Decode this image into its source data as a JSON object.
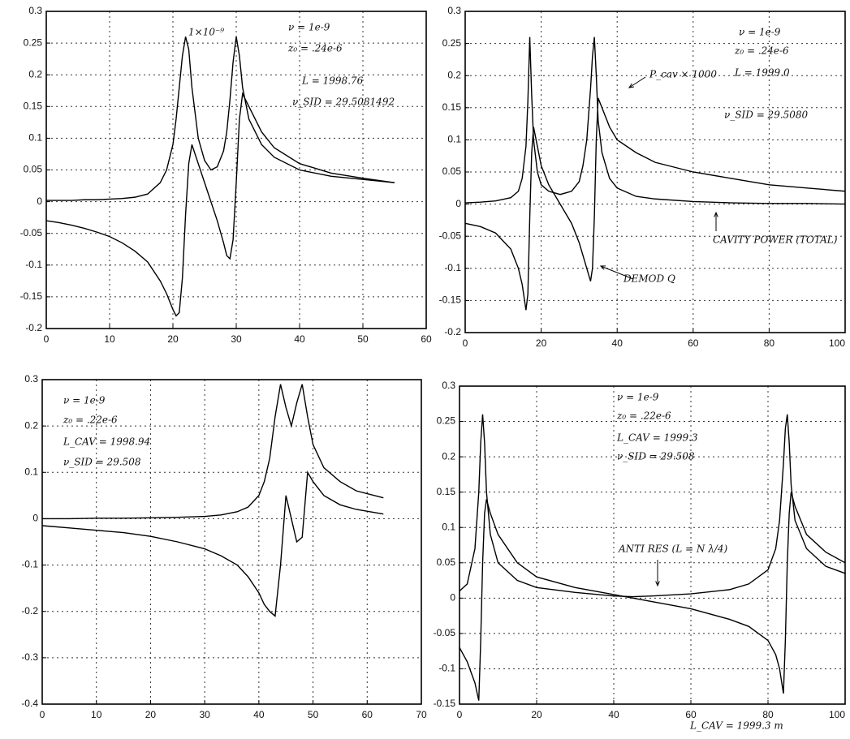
{
  "chart_data": [
    {
      "type": "line",
      "x": [
        0,
        2,
        4,
        6,
        8,
        10,
        12,
        14,
        16,
        18,
        19,
        20,
        20.5,
        21,
        21.5,
        22,
        22.5,
        23,
        24,
        25,
        26,
        27,
        28,
        28.5,
        29,
        29.5,
        30,
        30.5,
        31,
        32,
        34,
        36,
        40,
        45,
        50,
        55
      ],
      "series": [
        {
          "color": "#000000",
          "values": [
            0.002,
            0.002,
            0.002,
            0.003,
            0.003,
            0.004,
            0.005,
            0.007,
            0.012,
            0.03,
            0.05,
            0.09,
            0.13,
            0.18,
            0.23,
            0.26,
            0.24,
            0.18,
            0.1,
            0.065,
            0.05,
            0.055,
            0.08,
            0.11,
            0.16,
            0.22,
            0.26,
            0.23,
            0.18,
            0.13,
            0.09,
            0.07,
            0.05,
            0.04,
            0.035,
            0.03
          ]
        },
        {
          "color": "#000000",
          "values": [
            -0.03,
            -0.033,
            -0.037,
            -0.042,
            -0.048,
            -0.055,
            -0.065,
            -0.078,
            -0.095,
            -0.125,
            -0.145,
            -0.17,
            -0.18,
            -0.175,
            -0.12,
            -0.02,
            0.06,
            0.09,
            0.06,
            0.03,
            0.0,
            -0.03,
            -0.065,
            -0.085,
            -0.09,
            -0.06,
            0.03,
            0.13,
            0.17,
            0.15,
            0.11,
            0.085,
            0.06,
            0.045,
            0.037,
            0.03
          ]
        }
      ],
      "xlim": [
        0,
        60
      ],
      "ylim": [
        -0.2,
        0.3
      ],
      "xticks": [
        0,
        10,
        20,
        30,
        40,
        50,
        60
      ],
      "yticks": [
        -0.2,
        -0.15,
        -0.1,
        -0.05,
        0,
        0.05,
        0.1,
        0.15,
        0.2,
        0.25,
        0.3
      ],
      "grid": true,
      "annotations": [
        "1×10⁻⁹",
        "ν = 1e-9",
        "z₀ = .24e-6",
        "L = 1998.76",
        "ν_SID = 29.5081492"
      ]
    },
    {
      "type": "line",
      "x": [
        0,
        4,
        8,
        12,
        14,
        15,
        16,
        16.5,
        17,
        17.5,
        18,
        19,
        20,
        22,
        25,
        28,
        30,
        31,
        32,
        33,
        33.5,
        34,
        34.5,
        35,
        36,
        38,
        40,
        45,
        50,
        60,
        70,
        80,
        90,
        100
      ],
      "series": [
        {
          "color": "#000000",
          "values": [
            0.002,
            0.003,
            0.005,
            0.01,
            0.02,
            0.04,
            0.09,
            0.16,
            0.26,
            0.17,
            0.1,
            0.05,
            0.03,
            0.02,
            0.015,
            0.02,
            0.035,
            0.06,
            0.1,
            0.18,
            0.23,
            0.26,
            0.2,
            0.13,
            0.08,
            0.04,
            0.025,
            0.012,
            0.008,
            0.004,
            0.002,
            0.001,
            0.001,
            0.0
          ]
        },
        {
          "color": "#000000",
          "values": [
            -0.03,
            -0.035,
            -0.045,
            -0.07,
            -0.1,
            -0.125,
            -0.165,
            -0.14,
            -0.02,
            0.08,
            0.12,
            0.09,
            0.06,
            0.03,
            0.0,
            -0.03,
            -0.06,
            -0.08,
            -0.1,
            -0.12,
            -0.1,
            -0.02,
            0.1,
            0.165,
            0.15,
            0.12,
            0.1,
            0.08,
            0.065,
            0.05,
            0.04,
            0.03,
            0.025,
            0.02
          ]
        }
      ],
      "xlim": [
        0,
        100
      ],
      "ylim": [
        -0.2,
        0.3
      ],
      "xticks": [
        0,
        20,
        40,
        60,
        80,
        100
      ],
      "yticks": [
        -0.2,
        -0.15,
        -0.1,
        -0.05,
        0,
        0.05,
        0.1,
        0.15,
        0.2,
        0.25,
        0.3
      ],
      "grid": true,
      "annotations": [
        "ν = 1e-9",
        "z₀ = .24e-6",
        "L = 1999.0",
        "ν_SID = 29.5080",
        "P_cav × 1000",
        "CAVITY POWER (TOTAL)",
        "DEMOD Q"
      ]
    },
    {
      "type": "line",
      "x": [
        0,
        5,
        10,
        15,
        20,
        25,
        30,
        33,
        36,
        38,
        40,
        41,
        42,
        43,
        44,
        45,
        46,
        47,
        48,
        49,
        50,
        52,
        55,
        58,
        63
      ],
      "series": [
        {
          "color": "#000000",
          "values": [
            0,
            0,
            0.001,
            0.001,
            0.002,
            0.003,
            0.005,
            0.008,
            0.015,
            0.025,
            0.05,
            0.08,
            0.13,
            0.22,
            0.29,
            0.24,
            0.2,
            0.25,
            0.29,
            0.22,
            0.16,
            0.11,
            0.08,
            0.06,
            0.045
          ]
        },
        {
          "color": "#000000",
          "values": [
            -0.015,
            -0.02,
            -0.025,
            -0.03,
            -0.038,
            -0.05,
            -0.065,
            -0.08,
            -0.1,
            -0.125,
            -0.16,
            -0.185,
            -0.2,
            -0.21,
            -0.1,
            0.05,
            0.0,
            -0.05,
            -0.04,
            0.1,
            0.08,
            0.05,
            0.03,
            0.02,
            0.01
          ]
        }
      ],
      "xlim": [
        0,
        70
      ],
      "ylim": [
        -0.4,
        0.3
      ],
      "xticks": [
        0,
        10,
        20,
        30,
        40,
        50,
        60,
        70
      ],
      "yticks": [
        -0.4,
        -0.3,
        -0.2,
        -0.1,
        0,
        0.1,
        0.2,
        0.3
      ],
      "grid": true,
      "annotations": [
        "ν = 1e-9",
        "z₀ = .22e-6",
        "L_CAV = 1998.94",
        "ν_SID = 29.508"
      ]
    },
    {
      "type": "line",
      "x": [
        0,
        2,
        4,
        5,
        5.5,
        6,
        6.5,
        7,
        8,
        10,
        15,
        20,
        30,
        40,
        45,
        50,
        60,
        70,
        75,
        80,
        82,
        83,
        84,
        84.5,
        85,
        85.5,
        86,
        87,
        90,
        95,
        100
      ],
      "series": [
        {
          "color": "#000000",
          "values": [
            0.01,
            0.02,
            0.07,
            0.15,
            0.22,
            0.26,
            0.22,
            0.15,
            0.09,
            0.05,
            0.025,
            0.015,
            0.008,
            0.003,
            0.002,
            0.003,
            0.006,
            0.012,
            0.02,
            0.04,
            0.07,
            0.11,
            0.19,
            0.24,
            0.26,
            0.22,
            0.16,
            0.11,
            0.07,
            0.045,
            0.035
          ]
        },
        {
          "color": "#000000",
          "values": [
            -0.07,
            -0.09,
            -0.12,
            -0.145,
            -0.06,
            0.05,
            0.12,
            0.14,
            0.12,
            0.09,
            0.05,
            0.03,
            0.015,
            0.005,
            0.0,
            -0.005,
            -0.015,
            -0.03,
            -0.04,
            -0.06,
            -0.08,
            -0.1,
            -0.135,
            -0.06,
            0.05,
            0.12,
            0.15,
            0.13,
            0.09,
            0.065,
            0.05
          ]
        }
      ],
      "xlim": [
        0,
        100
      ],
      "ylim": [
        -0.15,
        0.3
      ],
      "xticks": [
        0,
        20,
        40,
        60,
        80,
        100
      ],
      "yticks": [
        -0.15,
        -0.1,
        -0.05,
        0,
        0.05,
        0.1,
        0.15,
        0.2,
        0.25,
        0.3
      ],
      "grid": true,
      "annotations": [
        "ν = 1e-9",
        "z₀ = .22e-6",
        "L_CAV = 1999.3",
        "ν_SID = 29.508",
        "ANTI RES (L = N λ/4)",
        "L_CAV = 1999.3 m"
      ]
    }
  ]
}
